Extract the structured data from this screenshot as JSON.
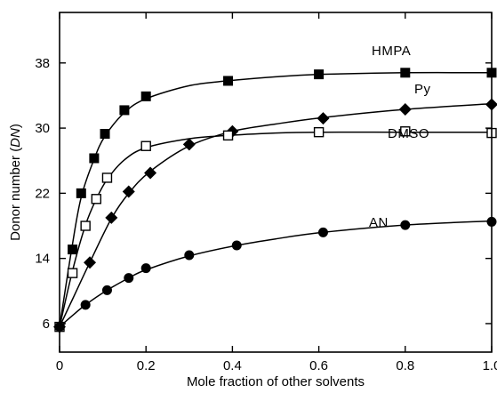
{
  "chart_data": {
    "type": "line",
    "xlabel": "Mole fraction of other solvents",
    "ylabel": {
      "prefix": "Donor number (",
      "italic": "DN",
      "suffix": ")"
    },
    "xlim": [
      0,
      1.0
    ],
    "ylim": [
      2.5,
      44.2
    ],
    "x_ticks": [
      0,
      0.2,
      0.4,
      0.6,
      0.8,
      1.0
    ],
    "x_tick_labels": [
      "0",
      "0.2",
      "0.4",
      "0.6",
      "0.8",
      "1.0"
    ],
    "y_ticks": [
      6,
      14,
      22,
      30,
      38
    ],
    "y_tick_labels": [
      "6",
      "14",
      "22",
      "30",
      "38"
    ],
    "series": [
      {
        "name": "HMPA",
        "marker": "filled-square",
        "x": [
          0,
          0.03,
          0.05,
          0.08,
          0.105,
          0.15,
          0.2,
          0.39,
          0.6,
          0.8,
          1.0
        ],
        "y": [
          5.6,
          15.1,
          22,
          26.3,
          29.3,
          32.2,
          33.9,
          35.8,
          36.6,
          36.8,
          36.8
        ],
        "curve_x": [
          0,
          0.03,
          0.05,
          0.08,
          0.105,
          0.15,
          0.2,
          0.3,
          0.39,
          0.5,
          0.6,
          0.8,
          1.0
        ],
        "curve_y": [
          5.6,
          15.8,
          21.5,
          26.2,
          29.0,
          31.9,
          33.6,
          35.2,
          35.8,
          36.3,
          36.6,
          36.8,
          36.8
        ]
      },
      {
        "name": "Py",
        "marker": "filled-diamond",
        "x": [
          0,
          0.07,
          0.12,
          0.16,
          0.21,
          0.3,
          0.4,
          0.61,
          0.8,
          1.0
        ],
        "y": [
          5.6,
          13.5,
          19,
          22.2,
          24.5,
          28,
          29.6,
          31.2,
          32.3,
          32.9
        ],
        "curve_x": [
          0,
          0.03,
          0.07,
          0.12,
          0.16,
          0.21,
          0.3,
          0.4,
          0.5,
          0.61,
          0.8,
          1.0
        ],
        "curve_y": [
          5.6,
          9.0,
          13.5,
          18.9,
          22.0,
          24.7,
          27.8,
          29.6,
          30.5,
          31.3,
          32.3,
          33.0
        ]
      },
      {
        "name": "DMSO",
        "marker": "open-square",
        "x": [
          0,
          0.03,
          0.06,
          0.085,
          0.11,
          0.2,
          0.39,
          0.6,
          0.8,
          1.0
        ],
        "y": [
          5.6,
          12.2,
          18,
          21.3,
          23.9,
          27.8,
          29.1,
          29.5,
          29.6,
          29.4
        ],
        "curve_x": [
          0,
          0.03,
          0.06,
          0.085,
          0.11,
          0.15,
          0.2,
          0.3,
          0.39,
          0.5,
          0.6,
          0.8,
          1.0
        ],
        "curve_y": [
          5.6,
          12.5,
          18.1,
          21.3,
          23.7,
          26.1,
          27.6,
          28.7,
          29.1,
          29.4,
          29.5,
          29.5,
          29.5
        ]
      },
      {
        "name": "AN",
        "marker": "filled-circle",
        "x": [
          0,
          0.06,
          0.11,
          0.16,
          0.2,
          0.3,
          0.41,
          0.61,
          0.8,
          1.0
        ],
        "y": [
          5.6,
          8.3,
          10.1,
          11.6,
          12.8,
          14.4,
          15.6,
          17.2,
          18.1,
          18.5
        ],
        "curve_x": [
          0,
          0.03,
          0.06,
          0.11,
          0.16,
          0.2,
          0.3,
          0.41,
          0.5,
          0.61,
          0.8,
          1.0
        ],
        "curve_y": [
          5.6,
          7.0,
          8.3,
          10.1,
          11.6,
          12.6,
          14.3,
          15.6,
          16.4,
          17.2,
          18.1,
          18.6
        ]
      }
    ],
    "grid": false,
    "legend": "none (series labeled directly on curves)"
  }
}
